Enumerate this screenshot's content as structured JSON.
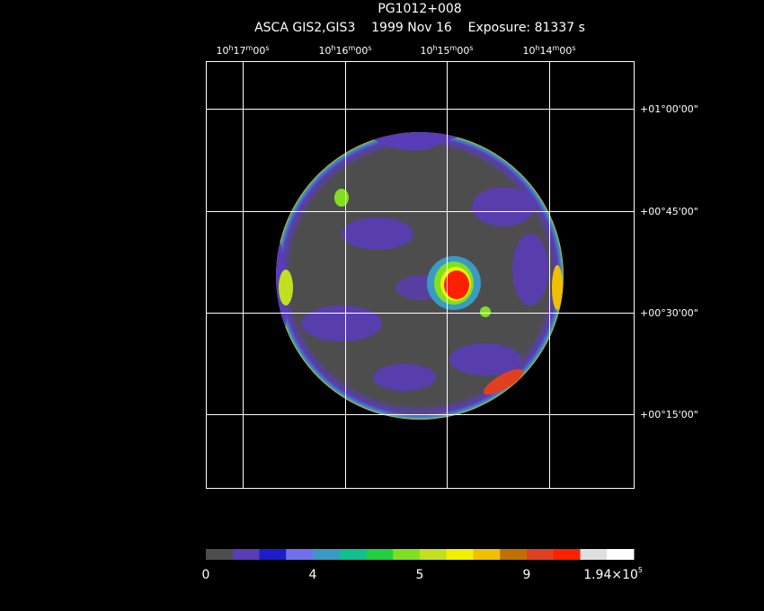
{
  "header": {
    "title": "PG1012+008",
    "subtitle": "ASCA GIS2,GIS3    1999 Nov 16    Exposure: 81337 s"
  },
  "axes": {
    "ra_units": [
      "h",
      "m",
      "s"
    ],
    "ra_labels": [
      {
        "h": "10",
        "m": "17",
        "s": "00"
      },
      {
        "h": "10",
        "m": "16",
        "s": "00"
      },
      {
        "h": "10",
        "m": "15",
        "s": "00"
      },
      {
        "h": "10",
        "m": "14",
        "s": "00"
      }
    ],
    "dec_labels": [
      "+01°00'00\"",
      "+00°45'00\"",
      "+00°30'00\"",
      "+00°15'00\""
    ]
  },
  "colorbar": {
    "colors": [
      "#4d4d4d",
      "#5a3cb8",
      "#1c1ccc",
      "#7070f0",
      "#3a9ac4",
      "#10c090",
      "#20d040",
      "#80e020",
      "#c0e020",
      "#f0f000",
      "#f0c000",
      "#c07000",
      "#e04020",
      "#ff2000",
      "#e0e0e0",
      "#ffffff"
    ],
    "labels": [
      {
        "text": "0"
      },
      {
        "text": "4"
      },
      {
        "text": "5"
      },
      {
        "text": "9"
      },
      {
        "text": "1.94×10",
        "exp": "5"
      }
    ]
  }
}
